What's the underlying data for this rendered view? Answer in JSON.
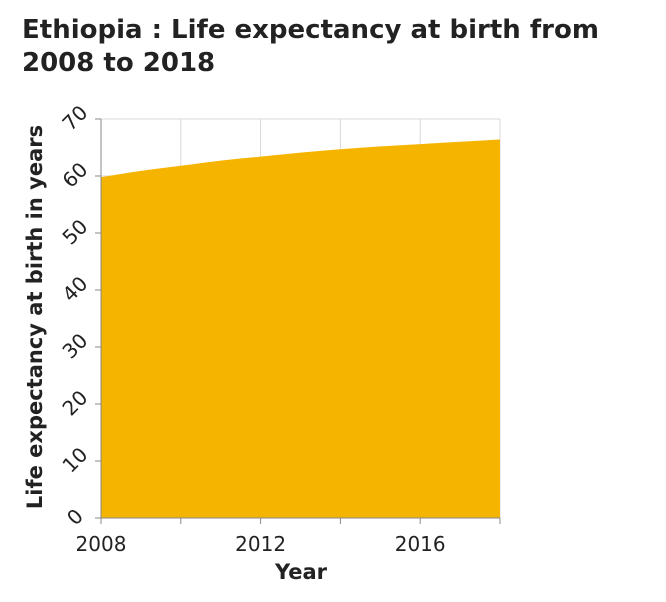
{
  "chart_data": {
    "type": "area",
    "title": "Ethiopia : Life expectancy at birth from 2008 to 2018",
    "xlabel": "Year",
    "ylabel": "Life expectancy at birth in years",
    "x": [
      2008,
      2009,
      2010,
      2011,
      2012,
      2013,
      2014,
      2015,
      2016,
      2017,
      2018
    ],
    "series": [
      {
        "values": [
          59.8,
          60.9,
          61.8,
          62.7,
          63.4,
          64.1,
          64.7,
          65.2,
          65.6,
          66.0,
          66.4
        ]
      }
    ],
    "xlim": [
      2008,
      2018
    ],
    "ylim": [
      0,
      70
    ],
    "x_ticks": [
      2008,
      2010,
      2012,
      2014,
      2016,
      2018
    ],
    "x_tick_labels": [
      "2008",
      "",
      "2012",
      "",
      "2016",
      ""
    ],
    "y_ticks": [
      0,
      10,
      20,
      30,
      40,
      50,
      60,
      70
    ],
    "y_tick_labels": [
      "0",
      "10",
      "20",
      "30",
      "40",
      "50",
      "60",
      "70"
    ],
    "grid": true,
    "fill_color": "#f5b400",
    "grid_color": "#d9d9d9"
  }
}
